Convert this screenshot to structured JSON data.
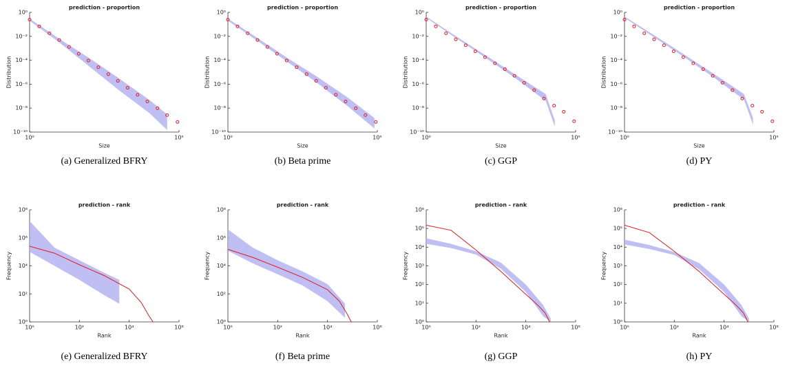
{
  "chart_data": [
    {
      "type": "scatter",
      "title": "prediction - proportion",
      "xlabel": "Size",
      "ylabel": "Distribution",
      "caption": "(a)  Generalized BFRY",
      "xscale": "log",
      "yscale": "log",
      "color": "#e41a1c",
      "band_color": "#b4b4f2",
      "xlim": [
        1,
        100000
      ],
      "ylim": [
        1e-10,
        1
      ],
      "xticks": [
        {
          "value": 1,
          "label": "10⁰"
        },
        {
          "value": 100000,
          "label": "10⁵"
        }
      ],
      "yticks": [
        {
          "value": 1e-10,
          "label": "10⁻¹⁰"
        },
        {
          "value": 1e-08,
          "label": "10⁻⁸"
        },
        {
          "value": 1e-06,
          "label": "10⁻⁶"
        },
        {
          "value": 0.0001,
          "label": "10⁻⁴"
        },
        {
          "value": 0.01,
          "label": "10⁻²"
        },
        {
          "value": 1,
          "label": "10⁰"
        }
      ],
      "x": [
        1,
        2.1,
        4.6,
        9.8,
        21,
        44,
        93,
        200,
        430,
        900,
        1900,
        4100,
        8700,
        19000,
        40000,
        89000
      ],
      "values": [
        0.25,
        0.068,
        0.018,
        0.0049,
        0.0013,
        0.00035,
        9.5e-05,
        2.6e-05,
        6.9e-06,
        1.9e-06,
        5e-07,
        1.3e-07,
        3.6e-08,
        9.8e-09,
        2.6e-09,
        7e-10
      ],
      "band": {
        "x": [
          1,
          10,
          100,
          1000,
          10000,
          40000
        ],
        "upper": [
          0.3,
          0.006,
          0.00015,
          3e-06,
          5e-08,
          3e-09
        ],
        "lower": [
          0.2,
          0.003,
          3e-05,
          3e-07,
          4e-09,
          1.5e-10
        ]
      }
    },
    {
      "type": "scatter",
      "title": "prediction - proportion",
      "xlabel": "Size",
      "ylabel": "Distribution",
      "caption": "(b)  Beta prime",
      "xscale": "log",
      "yscale": "log",
      "color": "#e41a1c",
      "band_color": "#b4b4f2",
      "xlim": [
        1,
        100000
      ],
      "ylim": [
        1e-10,
        1
      ],
      "xticks": [
        {
          "value": 1,
          "label": "10⁰"
        },
        {
          "value": 100000,
          "label": "10⁵"
        }
      ],
      "yticks": [
        {
          "value": 1e-10,
          "label": "10⁻¹⁰"
        },
        {
          "value": 1e-08,
          "label": "10⁻⁸"
        },
        {
          "value": 1e-06,
          "label": "10⁻⁶"
        },
        {
          "value": 0.0001,
          "label": "10⁻⁴"
        },
        {
          "value": 0.01,
          "label": "10⁻²"
        },
        {
          "value": 1,
          "label": "10⁰"
        }
      ],
      "x": [
        1,
        2.1,
        4.6,
        9.8,
        21,
        44,
        93,
        200,
        430,
        900,
        1900,
        4100,
        8700,
        19000,
        40000,
        89000
      ],
      "values": [
        0.25,
        0.068,
        0.018,
        0.0049,
        0.0013,
        0.00035,
        9.5e-05,
        2.6e-05,
        6.9e-06,
        1.9e-06,
        5e-07,
        1.3e-07,
        3.6e-08,
        9.8e-09,
        2.6e-09,
        7e-10
      ],
      "band": {
        "x": [
          1,
          10,
          100,
          1000,
          10000,
          80000
        ],
        "upper": [
          0.3,
          0.007,
          0.00015,
          4e-06,
          8e-08,
          1.5e-09
        ],
        "lower": [
          0.2,
          0.004,
          7e-05,
          1.2e-06,
          1.5e-08,
          2e-10
        ]
      }
    },
    {
      "type": "scatter",
      "title": "prediction - proportion",
      "xlabel": "Size",
      "ylabel": "Distribution",
      "caption": "(c)  GGP",
      "xscale": "log",
      "yscale": "log",
      "color": "#e41a1c",
      "band_color": "#b4b4f2",
      "xlim": [
        1,
        100000
      ],
      "ylim": [
        1e-10,
        1
      ],
      "xticks": [
        {
          "value": 1,
          "label": "10⁰"
        },
        {
          "value": 100000,
          "label": "10⁵"
        }
      ],
      "yticks": [
        {
          "value": 1e-10,
          "label": "10⁻¹⁰"
        },
        {
          "value": 1e-08,
          "label": "10⁻⁸"
        },
        {
          "value": 1e-06,
          "label": "10⁻⁶"
        },
        {
          "value": 0.0001,
          "label": "10⁻⁴"
        },
        {
          "value": 0.01,
          "label": "10⁻²"
        },
        {
          "value": 1,
          "label": "10⁰"
        }
      ],
      "x": [
        1,
        2.1,
        4.6,
        9.8,
        21,
        44,
        93,
        200,
        430,
        900,
        1900,
        4100,
        8700,
        19000,
        40000,
        89000
      ],
      "values": [
        0.25,
        0.068,
        0.018,
        0.0056,
        0.0018,
        0.00056,
        0.00018,
        5.6e-05,
        1.8e-05,
        5e-06,
        1.3e-06,
        3.2e-07,
        6.3e-08,
        1.6e-08,
        5e-09,
        8e-10
      ],
      "band": {
        "x": [
          1,
          10,
          100,
          1000,
          10000,
          20000
        ],
        "upper": [
          0.45,
          0.01,
          0.00025,
          6e-06,
          1.5e-07,
          1e-09
        ],
        "lower": [
          0.35,
          0.007,
          0.00015,
          3e-06,
          4e-08,
          3e-10
        ]
      }
    },
    {
      "type": "scatter",
      "title": "prediction - proportion",
      "xlabel": "Size",
      "ylabel": "Distribution",
      "caption": "(d)  PY",
      "xscale": "log",
      "yscale": "log",
      "color": "#e41a1c",
      "band_color": "#b4b4f2",
      "xlim": [
        1,
        100000
      ],
      "ylim": [
        1e-10,
        1
      ],
      "xticks": [
        {
          "value": 1,
          "label": "10⁰"
        },
        {
          "value": 100000,
          "label": "10⁵"
        }
      ],
      "yticks": [
        {
          "value": 1e-10,
          "label": "10⁻¹⁰"
        },
        {
          "value": 1e-08,
          "label": "10⁻⁸"
        },
        {
          "value": 1e-06,
          "label": "10⁻⁶"
        },
        {
          "value": 0.0001,
          "label": "10⁻⁴"
        },
        {
          "value": 0.01,
          "label": "10⁻²"
        },
        {
          "value": 1,
          "label": "10⁰"
        }
      ],
      "x": [
        1,
        2.1,
        4.6,
        9.8,
        21,
        44,
        93,
        200,
        430,
        900,
        1900,
        4100,
        8700,
        19000,
        40000,
        89000
      ],
      "values": [
        0.25,
        0.068,
        0.018,
        0.0056,
        0.0018,
        0.00056,
        0.00018,
        5.6e-05,
        1.8e-05,
        5e-06,
        1.3e-06,
        3.2e-07,
        6.3e-08,
        1.6e-08,
        5e-09,
        8e-10
      ],
      "band": {
        "x": [
          1,
          10,
          100,
          1000,
          10000,
          20000
        ],
        "upper": [
          0.45,
          0.012,
          0.0003,
          7e-06,
          1.5e-07,
          1.5e-09
        ],
        "lower": [
          0.35,
          0.008,
          0.00018,
          3.5e-06,
          5e-08,
          4e-10
        ]
      }
    },
    {
      "type": "line",
      "title": "prediction - rank",
      "xlabel": "Rank",
      "ylabel": "Frequency",
      "caption": "(e)  Generalized BFRY",
      "xscale": "log",
      "yscale": "log",
      "color": "#e41a1c",
      "band_color": "#b4b4f2",
      "xlim": [
        1,
        1000000
      ],
      "ylim": [
        1,
        100000000
      ],
      "xticks": [
        {
          "value": 1,
          "label": "10⁰"
        },
        {
          "value": 100,
          "label": "10²"
        },
        {
          "value": 10000,
          "label": "10⁴"
        },
        {
          "value": 1000000,
          "label": "10⁶"
        }
      ],
      "yticks": [
        {
          "value": 1,
          "label": "10⁰"
        },
        {
          "value": 100,
          "label": "10²"
        },
        {
          "value": 10000,
          "label": "10⁴"
        },
        {
          "value": 1000000,
          "label": "10⁶"
        },
        {
          "value": 100000000,
          "label": "10⁸"
        }
      ],
      "x": [
        1,
        10,
        100,
        1000,
        10000,
        30000,
        60000,
        90000,
        100000
      ],
      "values": [
        250000,
        80000,
        12000,
        2000,
        220,
        25,
        3,
        1,
        1
      ],
      "band": {
        "x": [
          1,
          10,
          100,
          1000,
          4000
        ],
        "upper": [
          16000000,
          200000,
          25000,
          3200,
          1000
        ],
        "lower": [
          100000,
          10000,
          1000,
          80,
          20
        ]
      }
    },
    {
      "type": "line",
      "title": "prediction - rank",
      "xlabel": "Rank",
      "ylabel": "Frequency",
      "caption": "(f)  Beta prime",
      "xscale": "log",
      "yscale": "log",
      "color": "#e41a1c",
      "band_color": "#b4b4f2",
      "xlim": [
        1,
        1000000
      ],
      "ylim": [
        1,
        100000000
      ],
      "xticks": [
        {
          "value": 1,
          "label": "10⁰"
        },
        {
          "value": 100,
          "label": "10²"
        },
        {
          "value": 10000,
          "label": "10⁴"
        },
        {
          "value": 1000000,
          "label": "10⁶"
        }
      ],
      "yticks": [
        {
          "value": 1,
          "label": "10⁰"
        },
        {
          "value": 100,
          "label": "10²"
        },
        {
          "value": 10000,
          "label": "10⁴"
        },
        {
          "value": 1000000,
          "label": "10⁶"
        },
        {
          "value": 100000000,
          "label": "10⁸"
        }
      ],
      "x": [
        1,
        10,
        100,
        1000,
        10000,
        30000,
        60000,
        90000,
        100000
      ],
      "values": [
        150000,
        40000,
        8000,
        1500,
        200,
        30,
        4,
        1,
        1
      ],
      "band": {
        "x": [
          1,
          10,
          100,
          1000,
          10000,
          50000
        ],
        "upper": [
          4000000,
          200000,
          25000,
          4000,
          500,
          20
        ],
        "lower": [
          120000,
          15000,
          2500,
          400,
          30,
          2
        ]
      }
    },
    {
      "type": "line",
      "title": "prediction - rank",
      "xlabel": "Rank",
      "ylabel": "Frequency",
      "caption": "(g)  GGP",
      "xscale": "log",
      "yscale": "log",
      "color": "#e41a1c",
      "band_color": "#b4b4f2",
      "xlim": [
        1,
        1000000
      ],
      "ylim": [
        1,
        1000000
      ],
      "xticks": [
        {
          "value": 1,
          "label": "10⁰"
        },
        {
          "value": 100,
          "label": "10²"
        },
        {
          "value": 10000,
          "label": "10⁴"
        },
        {
          "value": 1000000,
          "label": "10⁶"
        }
      ],
      "yticks": [
        {
          "value": 1,
          "label": "10⁰"
        },
        {
          "value": 10,
          "label": "10¹"
        },
        {
          "value": 100,
          "label": "10²"
        },
        {
          "value": 1000,
          "label": "10³"
        },
        {
          "value": 10000,
          "label": "10⁴"
        },
        {
          "value": 100000,
          "label": "10⁵"
        },
        {
          "value": 1000000,
          "label": "10⁶"
        }
      ],
      "x": [
        1,
        10,
        100,
        1000,
        10000,
        30000,
        60000,
        90000,
        100000
      ],
      "values": [
        150000,
        80000,
        7000,
        500,
        30,
        8,
        3,
        1,
        1
      ],
      "band": {
        "x": [
          1,
          10,
          100,
          1000,
          10000,
          50000,
          100000
        ],
        "upper": [
          30000,
          15000,
          6000,
          1500,
          100,
          8,
          1.5
        ],
        "lower": [
          15000,
          9000,
          4000,
          700,
          40,
          2,
          1
        ]
      }
    },
    {
      "type": "line",
      "title": "prediction - rank",
      "xlabel": "Rank",
      "ylabel": "Frequency",
      "caption": "(h)  PY",
      "xscale": "log",
      "yscale": "log",
      "color": "#e41a1c",
      "band_color": "#b4b4f2",
      "xlim": [
        1,
        1000000
      ],
      "ylim": [
        1,
        1000000
      ],
      "xticks": [
        {
          "value": 1,
          "label": "10⁰"
        },
        {
          "value": 100,
          "label": "10²"
        },
        {
          "value": 10000,
          "label": "10⁴"
        },
        {
          "value": 1000000,
          "label": "10⁶"
        }
      ],
      "yticks": [
        {
          "value": 1,
          "label": "10⁰"
        },
        {
          "value": 10,
          "label": "10¹"
        },
        {
          "value": 100,
          "label": "10²"
        },
        {
          "value": 1000,
          "label": "10³"
        },
        {
          "value": 10000,
          "label": "10⁴"
        },
        {
          "value": 100000,
          "label": "10⁵"
        },
        {
          "value": 1000000,
          "label": "10⁶"
        }
      ],
      "x": [
        1,
        10,
        100,
        1000,
        10000,
        30000,
        60000,
        90000,
        100000
      ],
      "values": [
        150000,
        60000,
        6000,
        500,
        30,
        8,
        3,
        1,
        1
      ],
      "band": {
        "x": [
          1,
          10,
          100,
          1000,
          10000,
          50000,
          100000
        ],
        "upper": [
          25000,
          13000,
          5500,
          1400,
          100,
          8,
          1.5
        ],
        "lower": [
          14000,
          8000,
          3800,
          650,
          40,
          2,
          1
        ]
      }
    }
  ]
}
